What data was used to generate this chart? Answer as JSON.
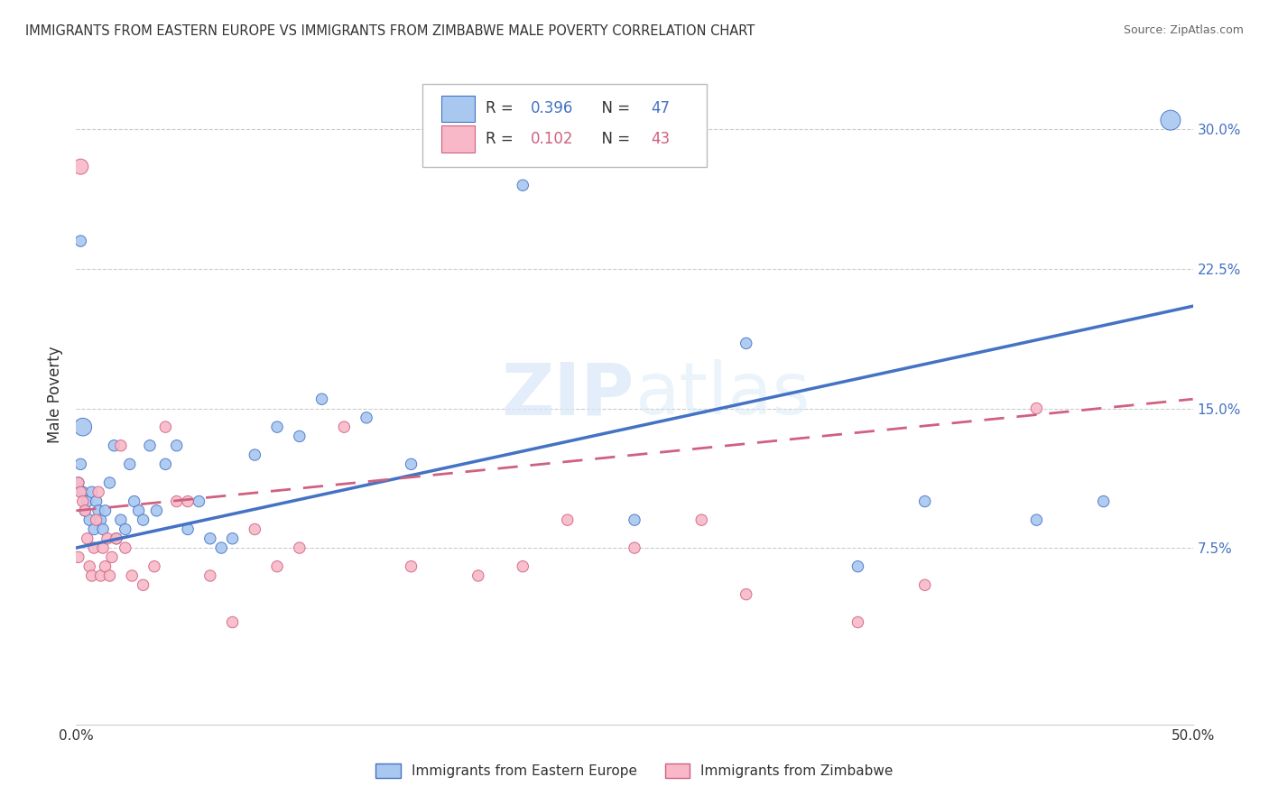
{
  "title": "IMMIGRANTS FROM EASTERN EUROPE VS IMMIGRANTS FROM ZIMBABWE MALE POVERTY CORRELATION CHART",
  "source": "Source: ZipAtlas.com",
  "ylabel": "Male Poverty",
  "xlim": [
    0,
    0.5
  ],
  "ylim": [
    -0.02,
    0.335
  ],
  "yticks_right": [
    0.075,
    0.15,
    0.225,
    0.3
  ],
  "ytick_right_labels": [
    "7.5%",
    "15.0%",
    "22.5%",
    "30.0%"
  ],
  "legend_r1": "R = 0.396",
  "legend_n1": "N = 47",
  "legend_r2": "R = 0.102",
  "legend_n2": "N = 43",
  "legend_label1": "Immigrants from Eastern Europe",
  "legend_label2": "Immigrants from Zimbabwe",
  "color_blue": "#A8C8F0",
  "color_pink": "#F8B8C8",
  "color_blue_line": "#4472C4",
  "color_pink_line": "#D06080",
  "grid_color": "#CCCCCC",
  "blue_line_start_y": 0.075,
  "blue_line_end_y": 0.205,
  "pink_line_start_y": 0.095,
  "pink_line_end_y": 0.155,
  "blue_x": [
    0.001,
    0.002,
    0.003,
    0.004,
    0.005,
    0.006,
    0.007,
    0.008,
    0.009,
    0.01,
    0.011,
    0.012,
    0.013,
    0.015,
    0.017,
    0.018,
    0.02,
    0.022,
    0.024,
    0.026,
    0.028,
    0.03,
    0.033,
    0.036,
    0.04,
    0.045,
    0.05,
    0.055,
    0.06,
    0.065,
    0.07,
    0.08,
    0.09,
    0.1,
    0.11,
    0.13,
    0.15,
    0.2,
    0.25,
    0.3,
    0.35,
    0.38,
    0.43,
    0.46,
    0.49,
    0.002,
    0.003
  ],
  "blue_y": [
    0.11,
    0.12,
    0.105,
    0.095,
    0.1,
    0.09,
    0.105,
    0.085,
    0.1,
    0.095,
    0.09,
    0.085,
    0.095,
    0.11,
    0.13,
    0.08,
    0.09,
    0.085,
    0.12,
    0.1,
    0.095,
    0.09,
    0.13,
    0.095,
    0.12,
    0.13,
    0.085,
    0.1,
    0.08,
    0.075,
    0.08,
    0.125,
    0.14,
    0.135,
    0.155,
    0.145,
    0.12,
    0.27,
    0.09,
    0.185,
    0.065,
    0.1,
    0.09,
    0.1,
    0.305,
    0.24,
    0.14
  ],
  "blue_sizes": [
    80,
    80,
    80,
    80,
    80,
    80,
    80,
    80,
    80,
    80,
    80,
    80,
    80,
    80,
    80,
    80,
    80,
    80,
    80,
    80,
    80,
    80,
    80,
    80,
    80,
    80,
    80,
    80,
    80,
    80,
    80,
    80,
    80,
    80,
    80,
    80,
    80,
    80,
    80,
    80,
    80,
    80,
    80,
    80,
    250,
    80,
    200
  ],
  "pink_x": [
    0.001,
    0.001,
    0.002,
    0.003,
    0.004,
    0.005,
    0.006,
    0.007,
    0.008,
    0.009,
    0.01,
    0.011,
    0.012,
    0.013,
    0.014,
    0.015,
    0.016,
    0.018,
    0.02,
    0.022,
    0.025,
    0.03,
    0.035,
    0.04,
    0.045,
    0.05,
    0.06,
    0.07,
    0.08,
    0.09,
    0.1,
    0.12,
    0.15,
    0.18,
    0.2,
    0.22,
    0.25,
    0.28,
    0.3,
    0.35,
    0.38,
    0.43,
    0.002
  ],
  "pink_y": [
    0.07,
    0.11,
    0.105,
    0.1,
    0.095,
    0.08,
    0.065,
    0.06,
    0.075,
    0.09,
    0.105,
    0.06,
    0.075,
    0.065,
    0.08,
    0.06,
    0.07,
    0.08,
    0.13,
    0.075,
    0.06,
    0.055,
    0.065,
    0.14,
    0.1,
    0.1,
    0.06,
    0.035,
    0.085,
    0.065,
    0.075,
    0.14,
    0.065,
    0.06,
    0.065,
    0.09,
    0.075,
    0.09,
    0.05,
    0.035,
    0.055,
    0.15,
    0.28
  ],
  "pink_sizes": [
    80,
    80,
    80,
    80,
    80,
    80,
    80,
    80,
    80,
    80,
    80,
    80,
    80,
    80,
    80,
    80,
    80,
    80,
    80,
    80,
    80,
    80,
    80,
    80,
    80,
    80,
    80,
    80,
    80,
    80,
    80,
    80,
    80,
    80,
    80,
    80,
    80,
    80,
    80,
    80,
    80,
    80,
    150
  ]
}
